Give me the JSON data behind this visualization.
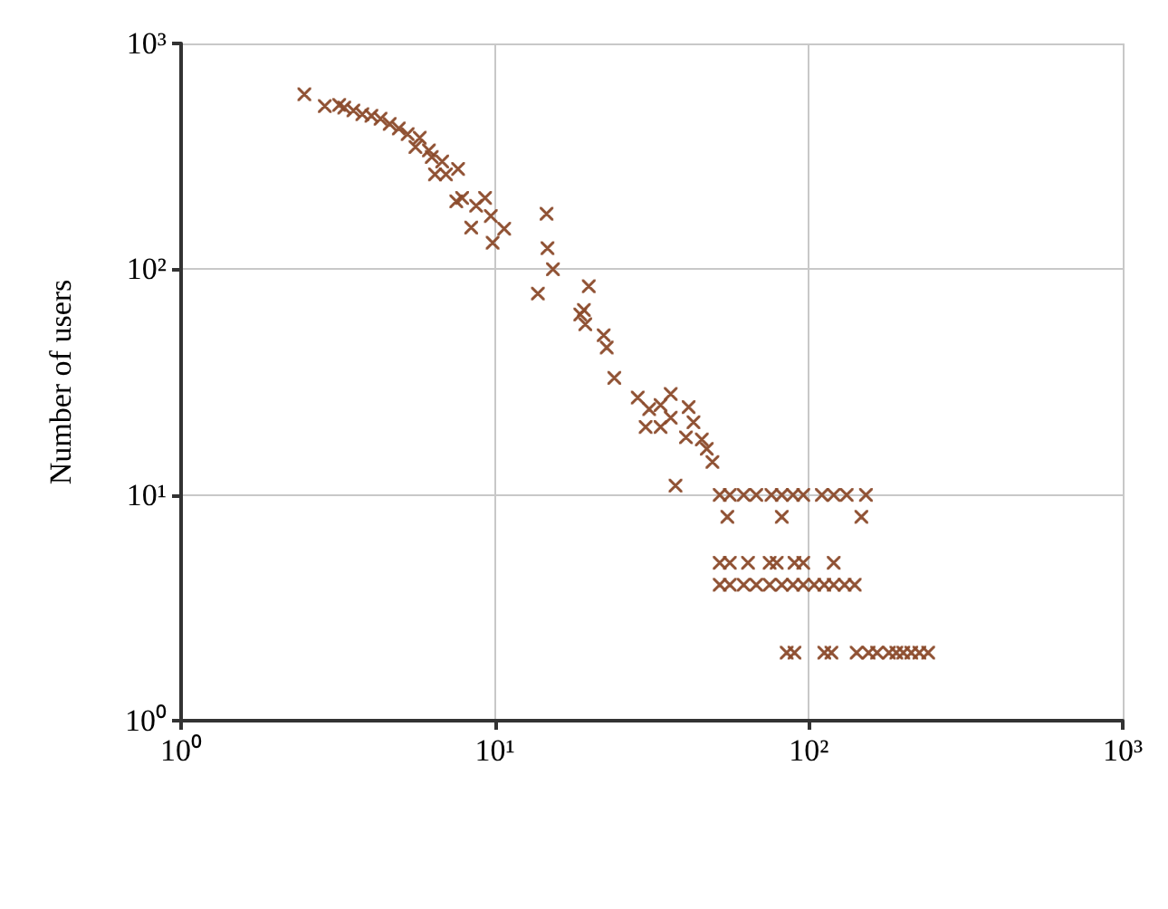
{
  "chart_data": {
    "type": "scatter",
    "ylabel": "Number of users",
    "log": "xy",
    "grid": true,
    "marker": "cross",
    "xlim": [
      1,
      1000
    ],
    "xticks": [
      {
        "value": 1,
        "label": "10⁰"
      },
      {
        "value": 10,
        "label": "10¹"
      },
      {
        "value": 100,
        "label": "10²"
      },
      {
        "value": 1000,
        "label": "10³"
      }
    ],
    "ylim": [
      1,
      1000
    ],
    "yticks": [
      {
        "value": 1,
        "label": "10⁰"
      },
      {
        "value": 10,
        "label": "10¹"
      },
      {
        "value": 100,
        "label": "10²"
      },
      {
        "value": 1000,
        "label": "10³"
      }
    ],
    "series": [
      {
        "color": "#8b4a2b",
        "x": [
          2.47,
          2.87,
          3.19,
          3.31,
          3.54,
          3.78,
          4.04,
          4.32,
          4.62,
          4.94,
          5.27,
          5.76,
          5.58,
          6.16,
          6.29,
          6.79,
          6.44,
          6.98,
          7.63,
          7.53,
          7.86,
          8.71,
          9.3,
          9.7,
          8.4,
          9.83,
          10.7,
          14.6,
          14.7,
          15.3,
          13.7,
          19.9,
          19.2,
          18.7,
          19.4,
          22.2,
          22.7,
          24,
          28.5,
          31,
          33.7,
          36.3,
          36.3,
          41.4,
          30.2,
          33.7,
          40.6,
          42.9,
          45.6,
          47.3,
          49.3,
          37.6,
          52,
          56,
          62,
          68,
          76,
          82,
          89,
          96,
          110,
          120,
          132,
          152,
          55,
          82,
          147,
          52,
          56,
          64,
          75,
          79,
          90,
          96,
          120,
          52,
          56,
          62,
          68,
          75,
          82,
          89,
          96,
          104,
          112,
          120,
          130,
          140,
          85,
          90,
          112,
          118,
          142,
          155,
          165,
          180,
          190,
          200,
          212,
          225,
          240
        ],
        "values": [
          596,
          528,
          534,
          520,
          505,
          486,
          478,
          464,
          440,
          420,
          397,
          382,
          348,
          336,
          314,
          300,
          263,
          263,
          278,
          200,
          207,
          191,
          207,
          172,
          153,
          131,
          151,
          176,
          124,
          100,
          78,
          84,
          66,
          63,
          57,
          51,
          45,
          33,
          27,
          24,
          25,
          28,
          22,
          24.5,
          20,
          20,
          18,
          21,
          17.6,
          16,
          14,
          11,
          10,
          10,
          10,
          10,
          10,
          10,
          10,
          10,
          10,
          10,
          10,
          10,
          8,
          8,
          8,
          5,
          5,
          5,
          5,
          5,
          5,
          5,
          5,
          4,
          4,
          4,
          4,
          4,
          4,
          4,
          4,
          4,
          4,
          4,
          4,
          4,
          2,
          2,
          2,
          2,
          2,
          2,
          2,
          2,
          2,
          2,
          2,
          2,
          2
        ]
      }
    ]
  }
}
